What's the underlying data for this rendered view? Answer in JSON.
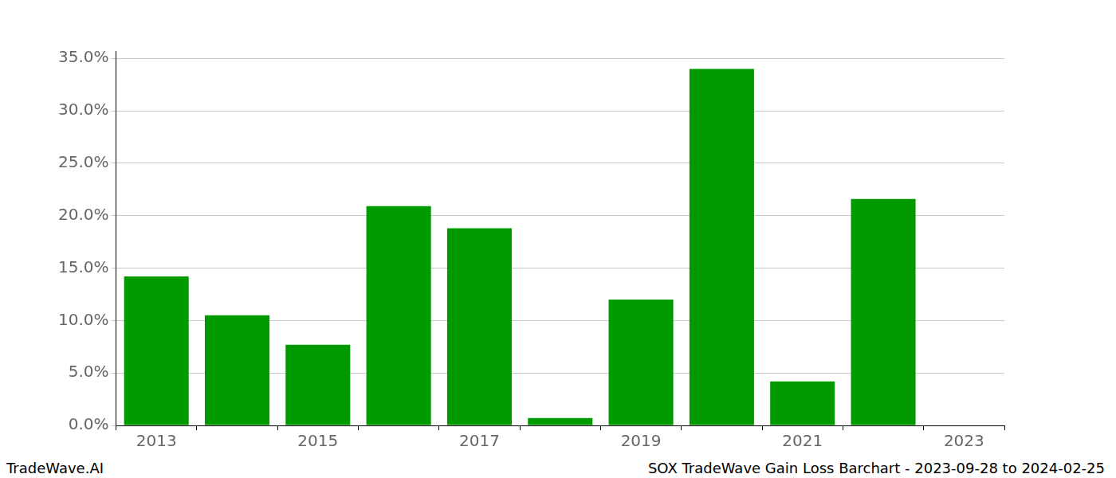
{
  "chart_data": {
    "type": "bar",
    "title": "SOX TradeWave Gain Loss Barchart - 2023-09-28 to 2024-02-25",
    "annotations": [
      "TradeWave.AI"
    ],
    "categories": [
      "2013",
      null,
      "2015",
      null,
      "2017",
      null,
      "2019",
      null,
      "2021",
      null,
      "2023"
    ],
    "values": [
      14.2,
      10.5,
      7.7,
      20.9,
      18.8,
      0.7,
      12.0,
      34.0,
      4.2,
      21.6,
      null
    ],
    "color": "#009900",
    "ylim": [
      0,
      35.7
    ],
    "yticks": [
      {
        "value": 0,
        "label": "0.0%"
      },
      {
        "value": 5,
        "label": "5.0%"
      },
      {
        "value": 10,
        "label": "10.0%"
      },
      {
        "value": 15,
        "label": "15.0%"
      },
      {
        "value": 20,
        "label": "20.0%"
      },
      {
        "value": 25,
        "label": "25.0%"
      },
      {
        "value": 30,
        "label": "30.0%"
      },
      {
        "value": 35,
        "label": "35.0%"
      }
    ],
    "grid": true
  }
}
